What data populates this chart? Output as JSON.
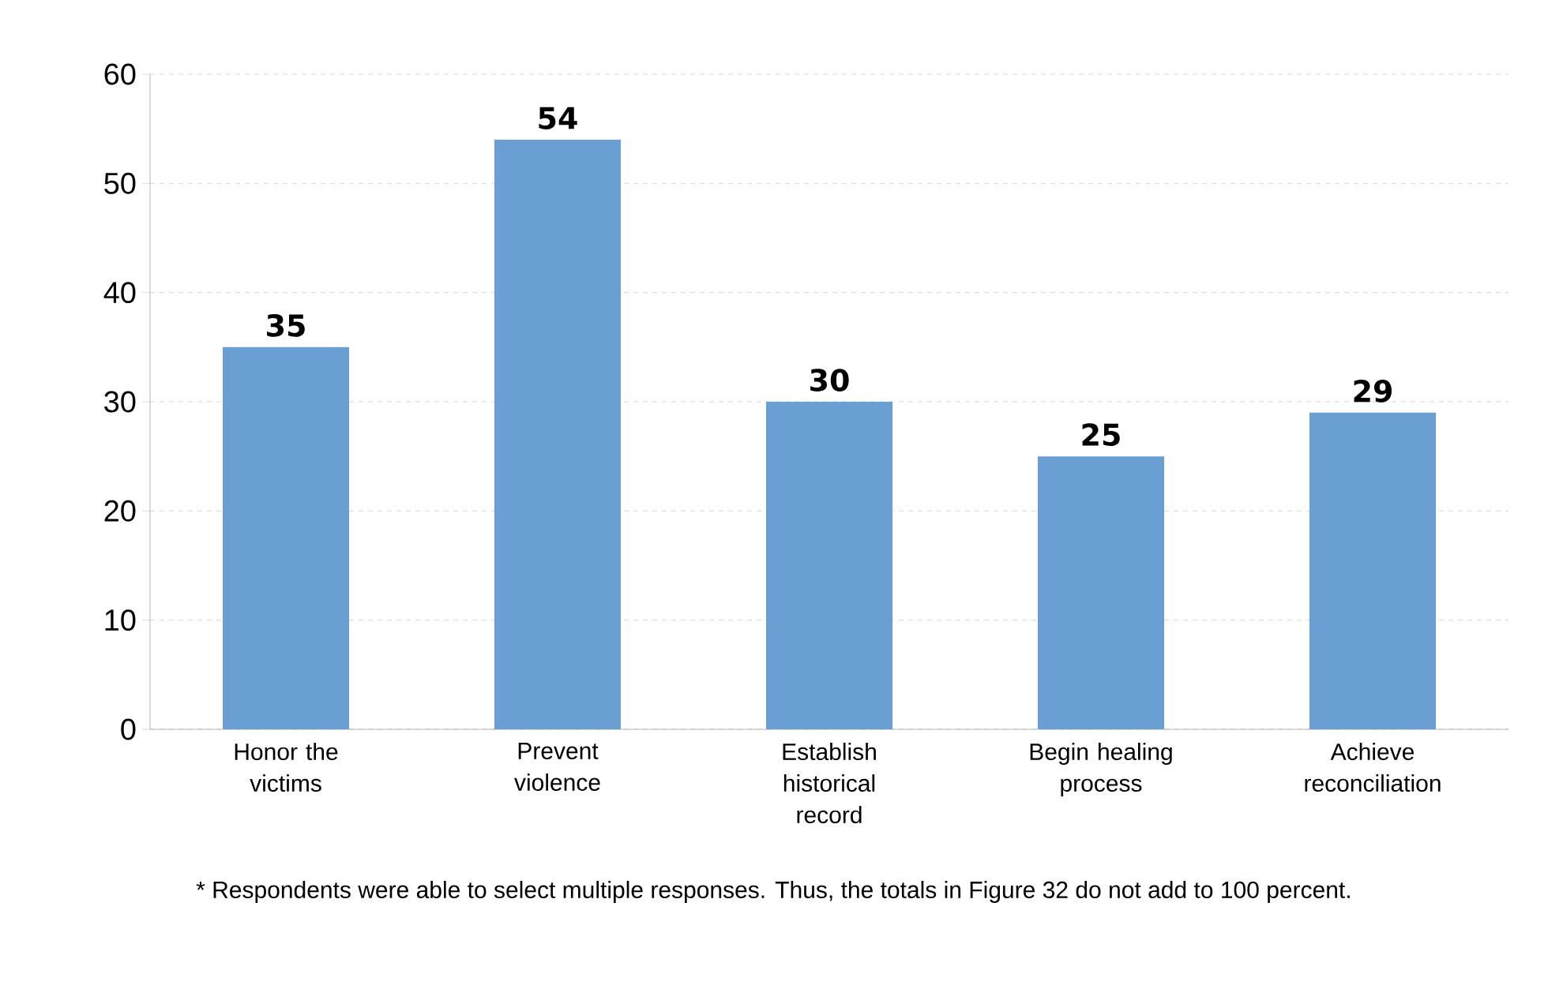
{
  "chart_data": {
    "type": "bar",
    "categories": [
      "Honor the victims",
      "Prevent violence",
      "Establish historical record",
      "Begin healing process",
      "Achieve reconciliation"
    ],
    "values": [
      35,
      54,
      30,
      25,
      29
    ],
    "color": "#6a9fd4",
    "ylim": [
      0,
      60
    ],
    "yticks": [
      0,
      10,
      20,
      30,
      40,
      50,
      60
    ],
    "grid": "y",
    "data_labels": true,
    "annotations": [
      "* Respondents were able to select multiple responses. Thus, the totals in Figure 32 do not add to 100 percent."
    ]
  }
}
